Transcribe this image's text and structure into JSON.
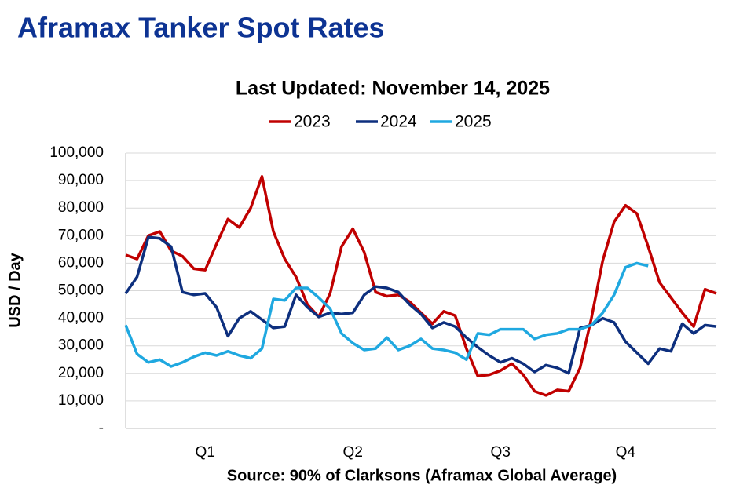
{
  "chart_data": {
    "type": "line",
    "title": "Aframax Tanker Spot Rates",
    "subtitle": "Last Updated: November 14, 2025",
    "y_label": "USD / Day",
    "source": "Source: 90% of Clarksons (Aframax Global Average)",
    "x": [
      1,
      2,
      3,
      4,
      5,
      6,
      7,
      8,
      9,
      10,
      11,
      12,
      13,
      14,
      15,
      16,
      17,
      18,
      19,
      20,
      21,
      22,
      23,
      24,
      25,
      26,
      27,
      28,
      29,
      30,
      31,
      32,
      33,
      34,
      35,
      36,
      37,
      38,
      39,
      40,
      41,
      42,
      43,
      44,
      45,
      46,
      47,
      48,
      49,
      50,
      51,
      52,
      53
    ],
    "xlim": [
      1,
      53
    ],
    "xticks": [
      {
        "value": 8,
        "label": "Q1"
      },
      {
        "value": 21,
        "label": "Q2"
      },
      {
        "value": 34,
        "label": "Q3"
      },
      {
        "value": 45,
        "label": "Q4"
      }
    ],
    "ylim": [
      0,
      100000
    ],
    "yticks": [
      {
        "value": 0,
        "label": "-"
      },
      {
        "value": 10000,
        "label": "10,000"
      },
      {
        "value": 20000,
        "label": "20,000"
      },
      {
        "value": 30000,
        "label": "30,000"
      },
      {
        "value": 40000,
        "label": "40,000"
      },
      {
        "value": 50000,
        "label": "50,000"
      },
      {
        "value": 60000,
        "label": "60,000"
      },
      {
        "value": 70000,
        "label": "70,000"
      },
      {
        "value": 80000,
        "label": "80,000"
      },
      {
        "value": 90000,
        "label": "90,000"
      },
      {
        "value": 100000,
        "label": "100,000"
      }
    ],
    "grid": true,
    "legend": "top",
    "series": [
      {
        "name": "2023",
        "color": "#c00000",
        "values": [
          63000,
          61500,
          70000,
          71500,
          64500,
          62500,
          58000,
          57500,
          67000,
          76000,
          73000,
          80000,
          91500,
          71500,
          61500,
          55000,
          45000,
          40500,
          49000,
          66000,
          72500,
          64000,
          49500,
          48000,
          48500,
          46000,
          42000,
          38000,
          42500,
          41000,
          29000,
          19000,
          19500,
          21000,
          23500,
          19500,
          13500,
          12000,
          14000,
          13500,
          22000,
          40000,
          61000,
          75000,
          81000,
          78000,
          66000,
          53000,
          47500,
          42000,
          37000,
          50500,
          49000
        ]
      },
      {
        "name": "2024",
        "color": "#0d2f7e",
        "values": [
          49000,
          55000,
          69500,
          69000,
          66000,
          49500,
          48500,
          49000,
          44000,
          33500,
          40000,
          42500,
          39500,
          36500,
          37000,
          48500,
          44000,
          40500,
          42000,
          41500,
          42000,
          48500,
          51500,
          51000,
          49500,
          45000,
          41500,
          36500,
          38500,
          37000,
          33000,
          29500,
          26500,
          24000,
          25500,
          23500,
          20500,
          23000,
          22000,
          20000,
          36500,
          37500,
          40000,
          38500,
          31500,
          27500,
          23500,
          29000,
          28000,
          38000,
          34500,
          37500,
          37000
        ]
      },
      {
        "name": "2025",
        "color": "#1fa8e0",
        "values": [
          37500,
          27000,
          24000,
          25000,
          22500,
          24000,
          26000,
          27500,
          26500,
          28000,
          26500,
          25500,
          29000,
          47000,
          46500,
          51000,
          51000,
          47500,
          43500,
          34500,
          31000,
          28500,
          29000,
          33000,
          28500,
          30000,
          32500,
          29000,
          28500,
          27500,
          25000,
          34500,
          34000,
          36000,
          36000,
          36000,
          32500,
          34000,
          34500,
          36000,
          36000,
          37500,
          42000,
          48500,
          58500,
          60000,
          59000,
          null,
          null,
          null,
          null,
          null,
          null
        ]
      }
    ]
  }
}
